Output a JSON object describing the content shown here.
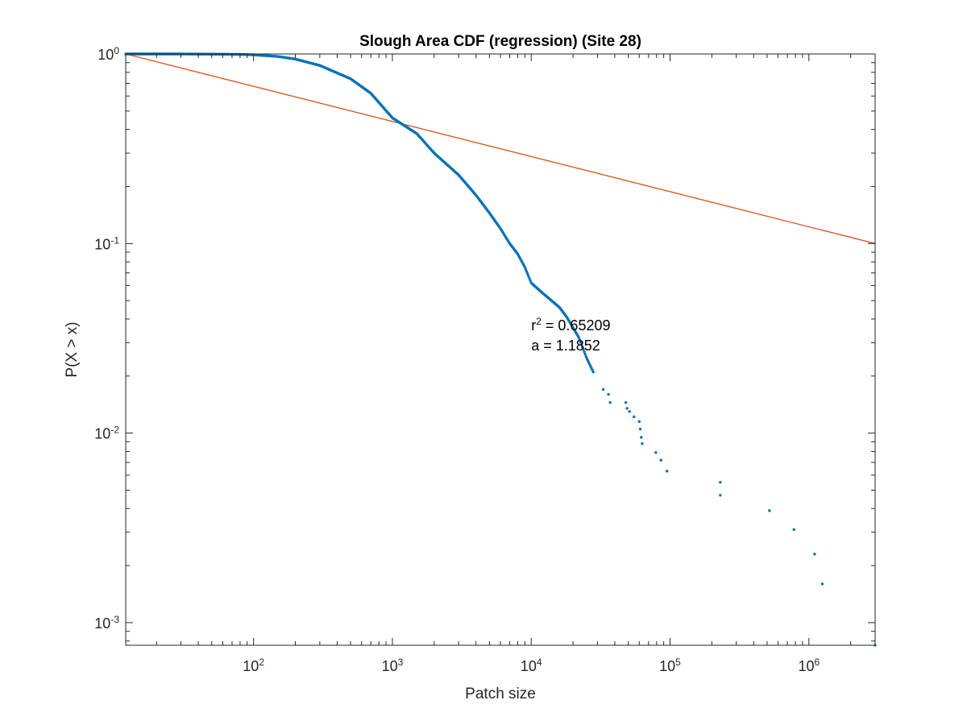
{
  "chart_data": {
    "type": "scatter",
    "title": "Slough Area CDF (regression) (Site 28)",
    "xlabel": "Patch size",
    "ylabel": "P(X > x)",
    "xscale": "log",
    "yscale": "log",
    "xlim": [
      12,
      3000000
    ],
    "ylim": [
      0.00076,
      1
    ],
    "x_ticks": [
      {
        "value": 100,
        "base": "10",
        "exp": "2"
      },
      {
        "value": 1000,
        "base": "10",
        "exp": "3"
      },
      {
        "value": 10000,
        "base": "10",
        "exp": "4"
      },
      {
        "value": 100000,
        "base": "10",
        "exp": "5"
      },
      {
        "value": 1000000,
        "base": "10",
        "exp": "6"
      }
    ],
    "y_ticks": [
      {
        "value": 1,
        "base": "10",
        "exp": "0"
      },
      {
        "value": 0.1,
        "base": "10",
        "exp": "-1"
      },
      {
        "value": 0.01,
        "base": "10",
        "exp": "-2"
      },
      {
        "value": 0.001,
        "base": "10",
        "exp": "-3"
      }
    ],
    "grid": false,
    "colors": {
      "points": "#0072bd",
      "fit": "#d95319",
      "axes": "#262626"
    },
    "series": [
      {
        "kind": "points",
        "curve_x": [
          12,
          14,
          20,
          30,
          50,
          80,
          100,
          150,
          200,
          300,
          500,
          700,
          1000,
          1500,
          2000,
          3000,
          4000,
          5000,
          6000,
          7000,
          8000,
          9000,
          10000,
          12000,
          14000,
          16000,
          18000,
          20000,
          22000,
          25000,
          28000
        ],
        "curve_y": [
          1.0,
          1.0,
          1.0,
          1.0,
          0.998,
          0.995,
          0.99,
          0.97,
          0.94,
          0.87,
          0.74,
          0.62,
          0.46,
          0.38,
          0.3,
          0.23,
          0.18,
          0.145,
          0.12,
          0.1,
          0.088,
          0.075,
          0.062,
          0.055,
          0.05,
          0.046,
          0.041,
          0.036,
          0.032,
          0.025,
          0.021
        ],
        "tail_x": [
          33000,
          36000,
          37000,
          48000,
          49000,
          51000,
          55000,
          60000,
          61000,
          62000,
          63000,
          79000,
          86000,
          95000,
          230000,
          230000,
          520000,
          780000,
          1100000,
          1250000,
          3000000
        ],
        "tail_y": [
          0.017,
          0.016,
          0.0145,
          0.0145,
          0.0135,
          0.013,
          0.0122,
          0.0115,
          0.0105,
          0.0095,
          0.0088,
          0.0079,
          0.0072,
          0.0063,
          0.0055,
          0.0047,
          0.0039,
          0.0031,
          0.0023,
          0.0016,
          0.00076
        ]
      },
      {
        "kind": "line",
        "x": [
          12,
          3000000
        ],
        "y": [
          1.0,
          0.1
        ]
      }
    ],
    "annotation": {
      "r2_label": "r",
      "r2_sup": "2",
      "r2_value": " = 0.65209",
      "a_text": "a = 1.1852",
      "x": 10000,
      "y": 0.037
    }
  }
}
